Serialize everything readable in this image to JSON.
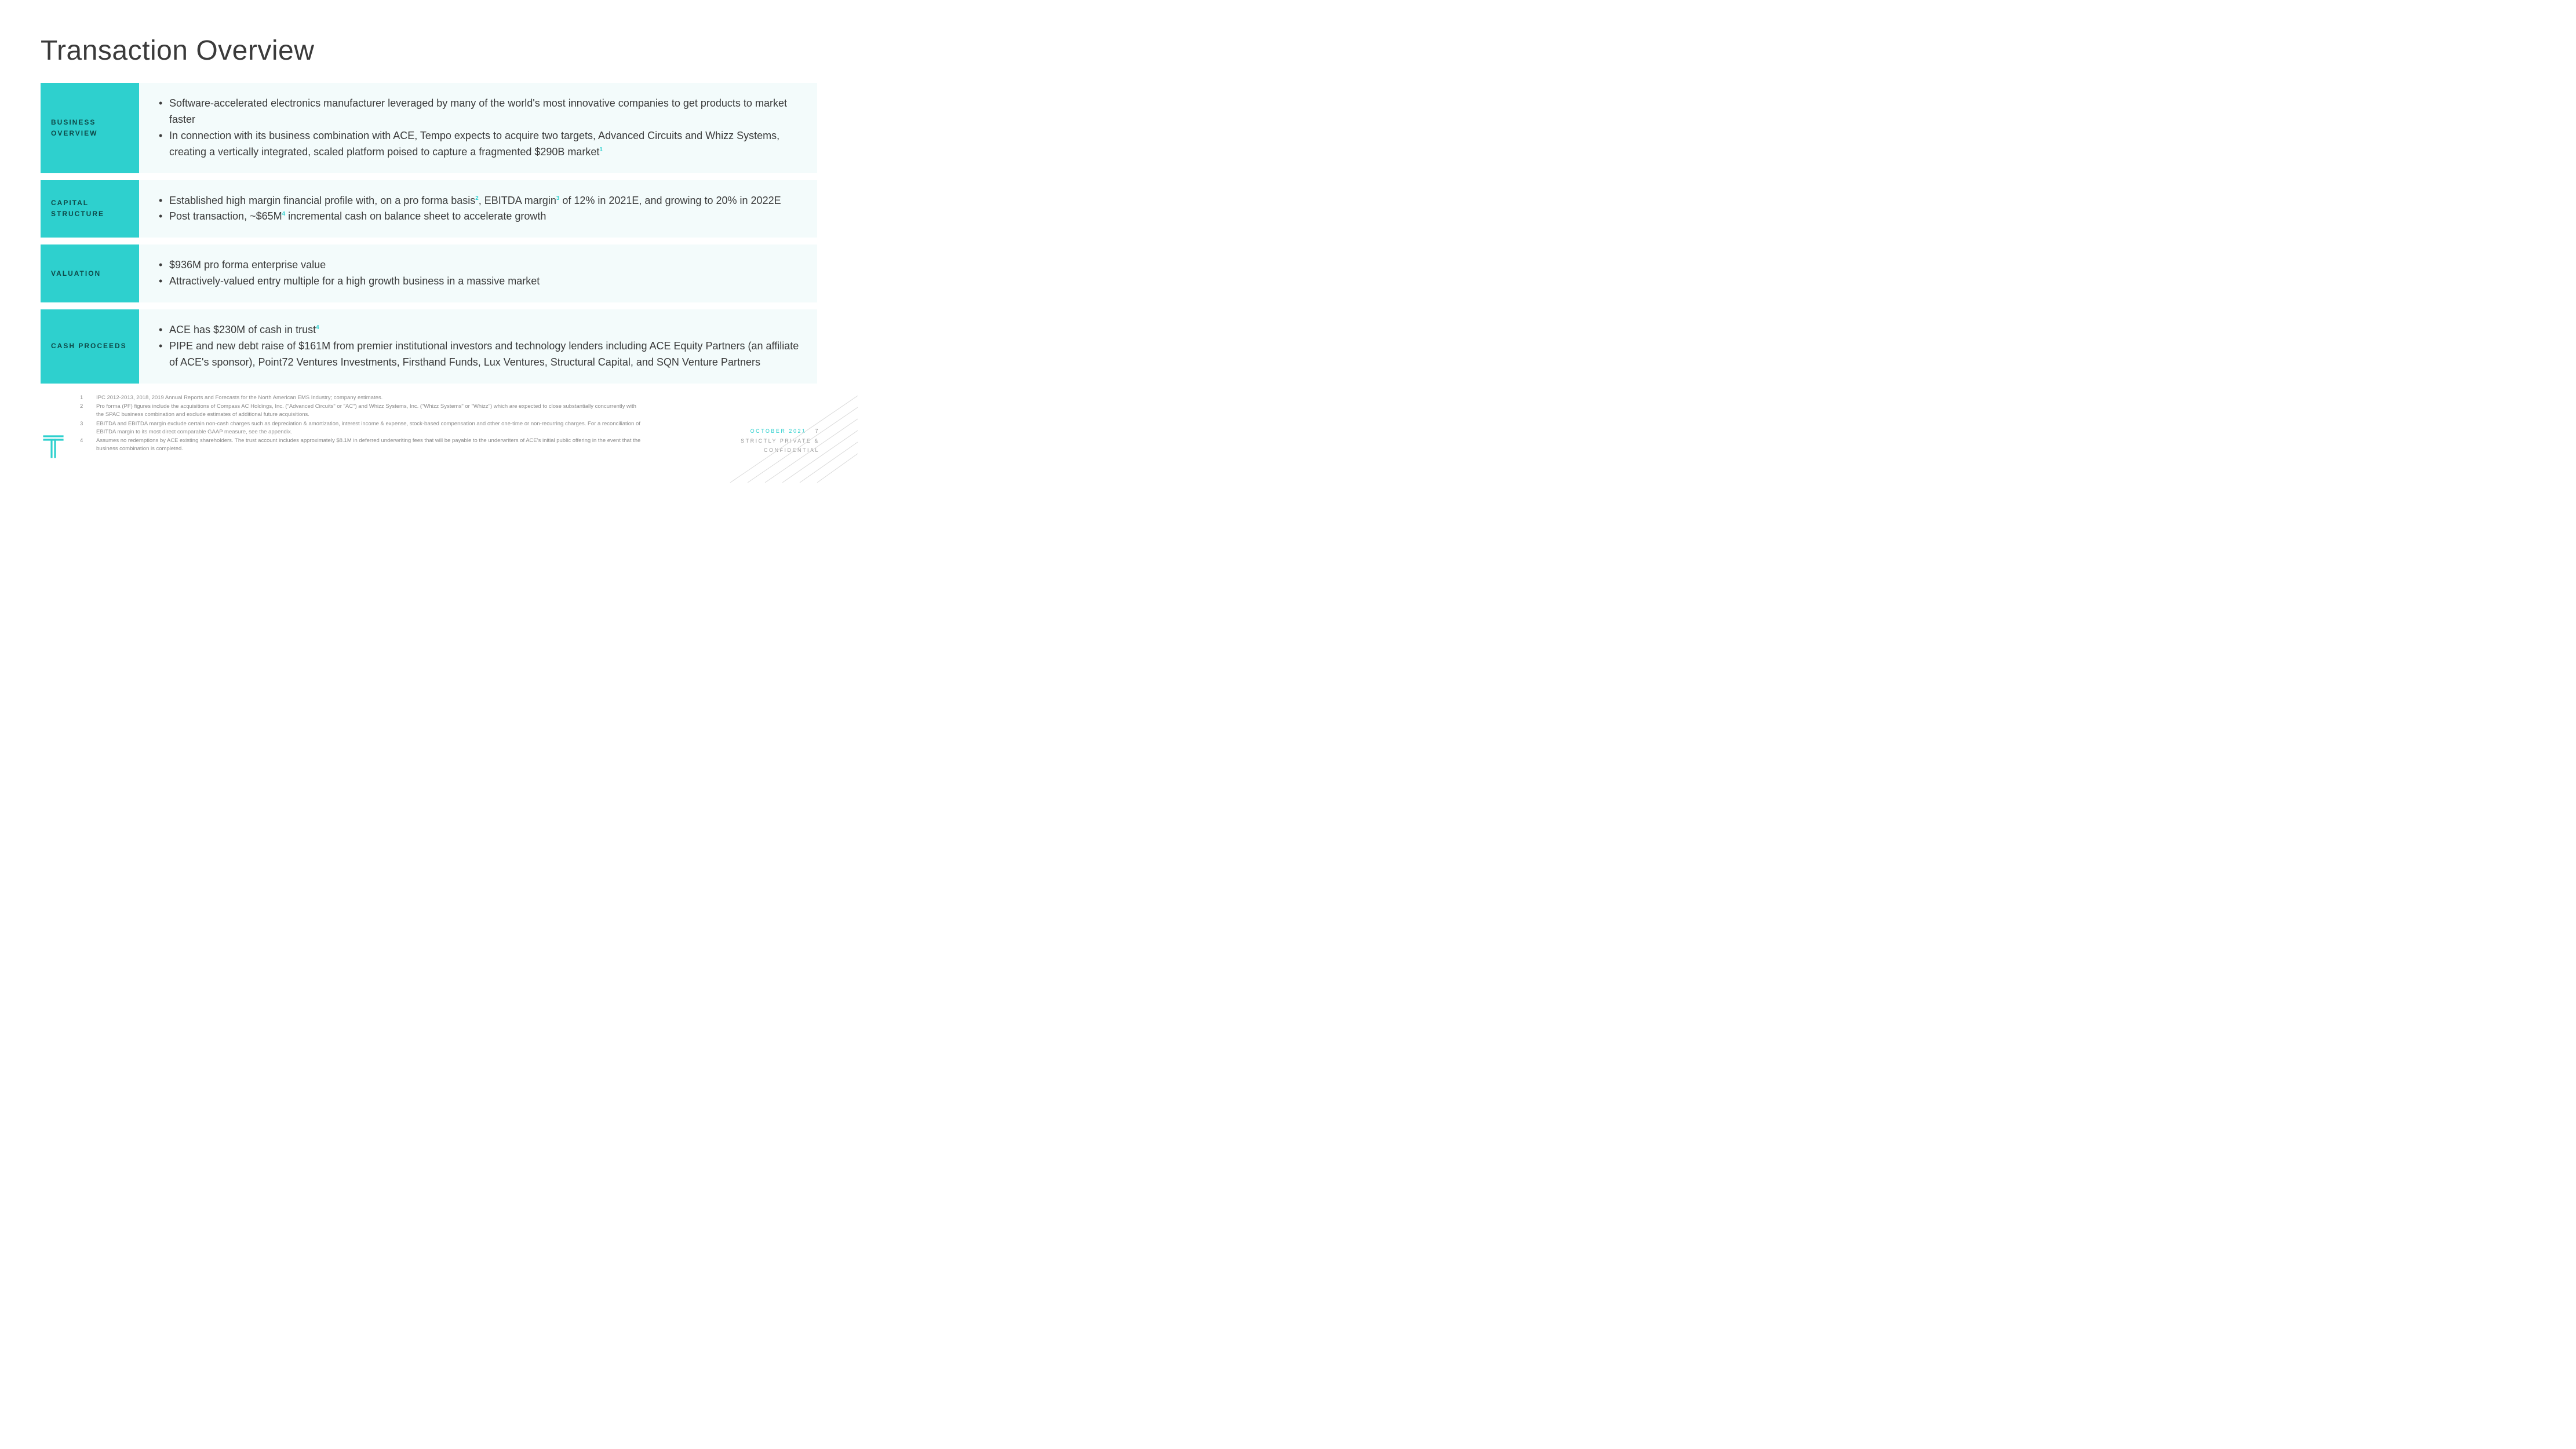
{
  "colors": {
    "accent": "#2ed0ce",
    "row_bg": "#f3fbfb",
    "text": "#3a3a3a",
    "muted": "#8a8a8a",
    "label_text": "#0e4a49"
  },
  "title": "Transaction Overview",
  "rows": [
    {
      "label": "BUSINESS OVERVIEW",
      "bullets_html": [
        "Software-accelerated electronics manufacturer leveraged by many of the world's most innovative companies to get products to market faster",
        "In connection with its business combination with ACE, Tempo expects to acquire two targets, Advanced Circuits and Whizz Systems, creating a vertically integrated, scaled platform poised to capture a fragmented $290B market<sup>1</sup>"
      ]
    },
    {
      "label": "CAPITAL STRUCTURE",
      "bullets_html": [
        "Established high margin financial profile with, on a pro forma basis<sup>2</sup>,  EBITDA margin<sup>3</sup> of 12% in 2021E, and growing to 20% in 2022E",
        "Post transaction, ~$65M<sup>4</sup> incremental cash on balance sheet to accelerate growth"
      ]
    },
    {
      "label": "VALUATION",
      "bullets_html": [
        "$936M pro forma enterprise value",
        "Attractively-valued entry multiple for a high growth business in a massive market"
      ]
    },
    {
      "label": "CASH PROCEEDS",
      "bullets_html": [
        "ACE has $230M of cash in trust<sup>4</sup>",
        "PIPE and new debt raise of $161M from premier institutional investors and technology lenders including ACE Equity Partners (an affiliate of ACE's sponsor), Point72 Ventures Investments, Firsthand Funds, Lux Ventures, Structural Capital, and SQN Venture Partners"
      ]
    }
  ],
  "footnotes": [
    {
      "n": "1",
      "text": "IPC 2012-2013, 2018, 2019 Annual Reports and Forecasts for the North American EMS Industry; company estimates."
    },
    {
      "n": "2",
      "text": "Pro forma (PF) figures include the acquisitions of Compass AC Holdings, Inc. (\"Advanced Circuits\" or \"AC\") and Whizz Systems, Inc. (\"Whizz Systems\" or \"Whizz\") which are expected to close substantially concurrently with the SPAC business combination and exclude estimates of additional future acquisitions."
    },
    {
      "n": "3",
      "text": "EBITDA and EBITDA margin exclude certain non-cash charges such as depreciation & amortization, interest income & expense, stock-based compensation and other one-time or non-recurring charges. For a reconciliation of EBITDA margin to its most direct comparable GAAP measure, see the appendix."
    },
    {
      "n": "4",
      "text": "Assumes no redemptions by ACE existing shareholders. The trust account includes approximately $8.1M in deferred underwriting fees that will be payable to the underwriters of ACE's initial public offering in the event that the business combination is completed."
    }
  ],
  "footer": {
    "date": "OCTOBER 2021",
    "page": "7",
    "confidential_l1": "STRICTLY PRIVATE &",
    "confidential_l2": "CONFIDENTIAL"
  }
}
